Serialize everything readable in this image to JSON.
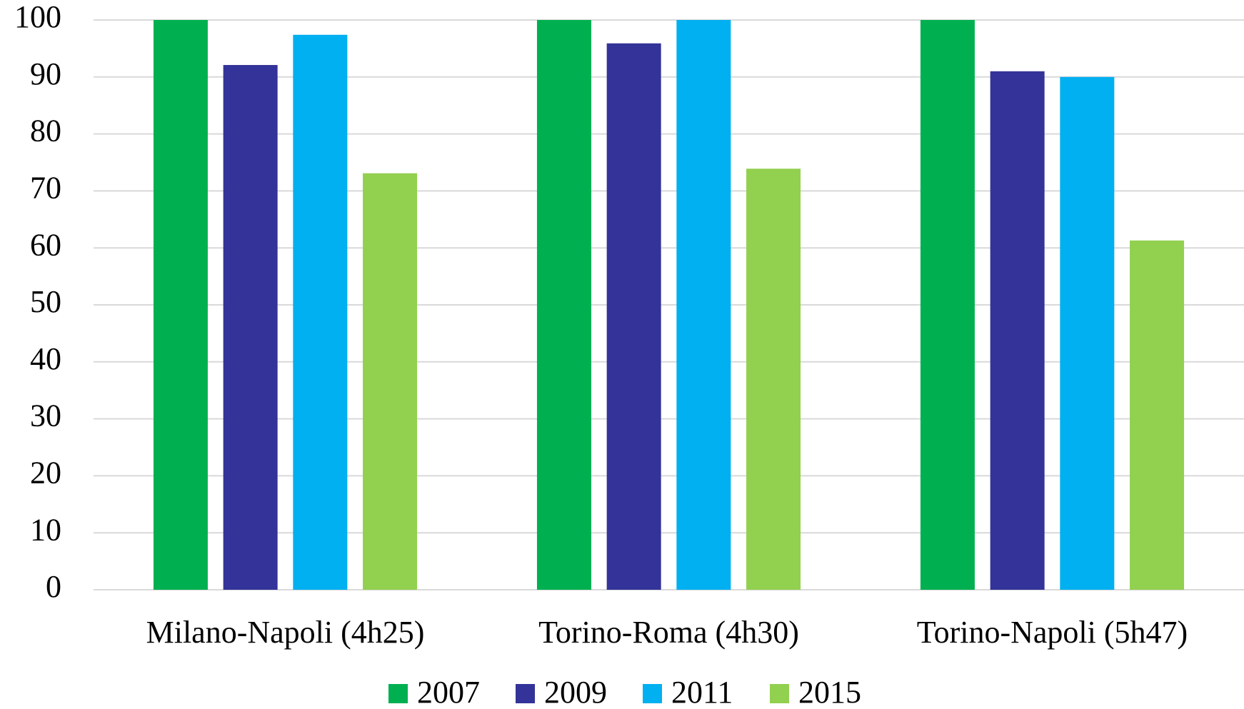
{
  "chart_data": {
    "type": "bar",
    "categories": [
      "Milano-Napoli (4h25)",
      "Torino-Roma (4h30)",
      "Torino-Napoli (5h47)"
    ],
    "series": [
      {
        "name": "2007",
        "color": "#00b050",
        "values": [
          100,
          100,
          100
        ]
      },
      {
        "name": "2009",
        "color": "#333399",
        "values": [
          92.1,
          95.9,
          91
        ]
      },
      {
        "name": "2011",
        "color": "#00b0f0",
        "values": [
          97.4,
          100,
          90
        ]
      },
      {
        "name": "2015",
        "color": "#92d050",
        "values": [
          73.1,
          73.9,
          61.3
        ]
      }
    ],
    "ylim": [
      0,
      100
    ],
    "yticks": [
      0,
      10,
      20,
      30,
      40,
      50,
      60,
      70,
      80,
      90,
      100
    ],
    "grid": true,
    "legend": "bottom"
  }
}
